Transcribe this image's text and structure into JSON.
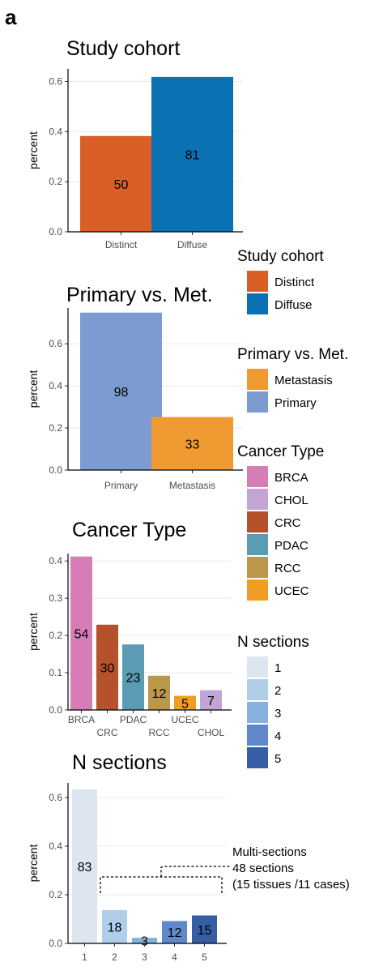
{
  "panel_letter": "a",
  "colors": {
    "Distinct": "#d95f26",
    "Diffuse": "#0a72b3",
    "Metastasis": "#ef9b32",
    "Primary": "#7b9bd1",
    "BRCA": "#d57eb6",
    "CHOL": "#c2a5d4",
    "CRC": "#b6522b",
    "PDAC": "#5b9bb3",
    "RCC": "#bb974a",
    "UCEC": "#f09d24",
    "1": "#dde6f0",
    "2": "#b0cde9",
    "3": "#88b0de",
    "4": "#5f89cc",
    "5": "#365ea4"
  },
  "chart_data": [
    {
      "type": "bar",
      "title": "Study cohort",
      "ylabel": "percent",
      "ylim": [
        0,
        0.65
      ],
      "yticks": [
        "0.0",
        "0.2",
        "0.4",
        "0.6"
      ],
      "categories": [
        "Distinct",
        "Diffuse"
      ],
      "values": [
        0.382,
        0.618
      ],
      "labels": [
        "50",
        "81"
      ],
      "grid": true
    },
    {
      "type": "bar",
      "title": "Primary vs. Met.",
      "ylabel": "percent",
      "ylim": [
        0,
        0.77
      ],
      "yticks": [
        "0.0",
        "0.2",
        "0.4",
        "0.6"
      ],
      "categories": [
        "Primary",
        "Metastasis"
      ],
      "values": [
        0.748,
        0.252
      ],
      "labels": [
        "98",
        "33"
      ],
      "grid": true
    },
    {
      "type": "bar",
      "title": "Cancer Type",
      "ylabel": "percent",
      "ylim": [
        0,
        0.42
      ],
      "yticks": [
        "0.0",
        "0.1",
        "0.2",
        "0.3",
        "0.4"
      ],
      "categories": [
        "BRCA",
        "CRC",
        "PDAC",
        "RCC",
        "UCEC",
        "CHOL"
      ],
      "values": [
        0.412,
        0.229,
        0.176,
        0.092,
        0.038,
        0.053
      ],
      "labels": [
        "54",
        "30",
        "23",
        "12",
        "5",
        "7"
      ],
      "grid": true
    },
    {
      "type": "bar",
      "title": "N sections",
      "ylabel": "percent",
      "ylim": [
        0,
        0.66
      ],
      "yticks": [
        "0.0",
        "0.2",
        "0.4",
        "0.6"
      ],
      "categories": [
        "1",
        "2",
        "3",
        "4",
        "5"
      ],
      "values": [
        0.634,
        0.137,
        0.023,
        0.092,
        0.115
      ],
      "labels": [
        "83",
        "18",
        "3",
        "12",
        "15"
      ],
      "grid": true
    }
  ],
  "legends": [
    {
      "title": "Study cohort",
      "items": [
        "Distinct",
        "Diffuse"
      ]
    },
    {
      "title": "Primary vs. Met.",
      "items": [
        "Metastasis",
        "Primary"
      ]
    },
    {
      "title": "Cancer Type",
      "items": [
        "BRCA",
        "CHOL",
        "CRC",
        "PDAC",
        "RCC",
        "UCEC"
      ]
    },
    {
      "title": "N sections",
      "items": [
        "1",
        "2",
        "3",
        "4",
        "5"
      ]
    }
  ],
  "annotation": {
    "lines": [
      "Multi-sections",
      "48 sections",
      "(15 tissues /11 cases)"
    ]
  }
}
